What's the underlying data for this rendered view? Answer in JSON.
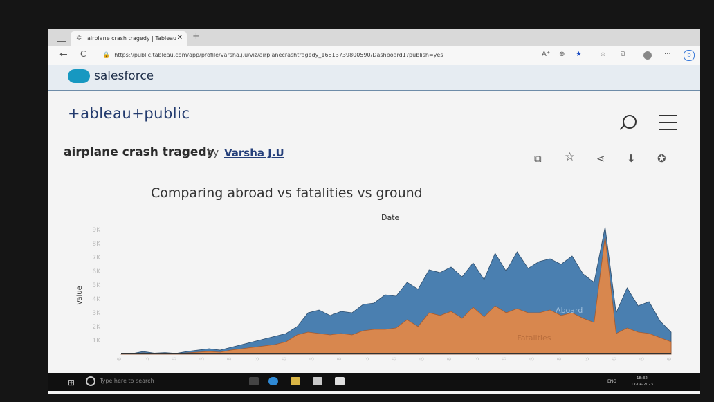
{
  "browser": {
    "tab_title": "airplane crash tragedy | Tableau",
    "tab_close": "✕",
    "new_tab": "+",
    "url": "https://public.tableau.com/app/profile/varsha.j.u/viz/airplanecrashtragedy_16813739800590/Dashboard1?publish=yes",
    "back": "←",
    "refresh": "C",
    "read_aloud": "A⁺",
    "more": "···"
  },
  "salesforce": {
    "brand": "salesforce"
  },
  "tableau": {
    "logo": "+ableau+public"
  },
  "viz": {
    "title": "airplane crash tragedy",
    "by": "by",
    "author": "Varsha J.U"
  },
  "chart_data": {
    "type": "area",
    "title": "Comparing abroad vs fatalities vs ground",
    "xlabel": "Date",
    "ylabel": "Value",
    "yticks": [
      "1K",
      "2K",
      "3K",
      "4K",
      "5K",
      "6K",
      "7K",
      "8K",
      "9K"
    ],
    "ylim": [
      0,
      9000
    ],
    "x": [
      1908,
      1910,
      1912,
      1914,
      1916,
      1918,
      1920,
      1922,
      1924,
      1926,
      1928,
      1930,
      1932,
      1934,
      1936,
      1938,
      1940,
      1942,
      1944,
      1946,
      1948,
      1950,
      1952,
      1954,
      1956,
      1958,
      1960,
      1962,
      1964,
      1966,
      1968,
      1970,
      1972,
      1974,
      1976,
      1978,
      1980,
      1982,
      1984,
      1986,
      1988,
      1990,
      1992,
      1994,
      1996,
      1998,
      2000,
      2002,
      2004,
      2006,
      2008
    ],
    "series": [
      {
        "name": "Aboard",
        "color": "#4a7fb0",
        "values": [
          10,
          40,
          200,
          80,
          120,
          60,
          200,
          300,
          400,
          300,
          500,
          700,
          900,
          1100,
          1300,
          1500,
          2000,
          3000,
          3200,
          2800,
          3100,
          3000,
          3600,
          3700,
          4300,
          4200,
          5200,
          4700,
          6100,
          5900,
          6300,
          5600,
          6600,
          5400,
          7300,
          6000,
          7400,
          6200,
          6700,
          6900,
          6500,
          7100,
          5800,
          5200,
          9200,
          3000,
          4800,
          3500,
          3800,
          2400,
          1600
        ]
      },
      {
        "name": "Fatalities",
        "color": "#d8874e",
        "values": [
          5,
          20,
          100,
          40,
          80,
          40,
          100,
          150,
          200,
          150,
          300,
          400,
          500,
          600,
          700,
          900,
          1400,
          1600,
          1500,
          1400,
          1500,
          1400,
          1700,
          1800,
          1800,
          1900,
          2500,
          2000,
          3000,
          2800,
          3100,
          2600,
          3400,
          2700,
          3500,
          3000,
          3300,
          3000,
          3000,
          3200,
          2800,
          3000,
          2600,
          2300,
          8500,
          1500,
          1900,
          1600,
          1500,
          1200,
          900
        ]
      }
    ],
    "x_tick_labels": [
      "1908",
      "1913",
      "1918",
      "1923",
      "1928",
      "1933",
      "1938",
      "1943",
      "1948",
      "1953",
      "1958",
      "1963",
      "1968",
      "1973",
      "1978",
      "1983",
      "1988",
      "1993",
      "1998",
      "2003",
      "2008"
    ],
    "grid": false,
    "legend": "inline labels"
  },
  "taskbar": {
    "search_placeholder": "Type here to search",
    "lang": "ENG",
    "time": "18:32",
    "date": "17-04-2023"
  }
}
